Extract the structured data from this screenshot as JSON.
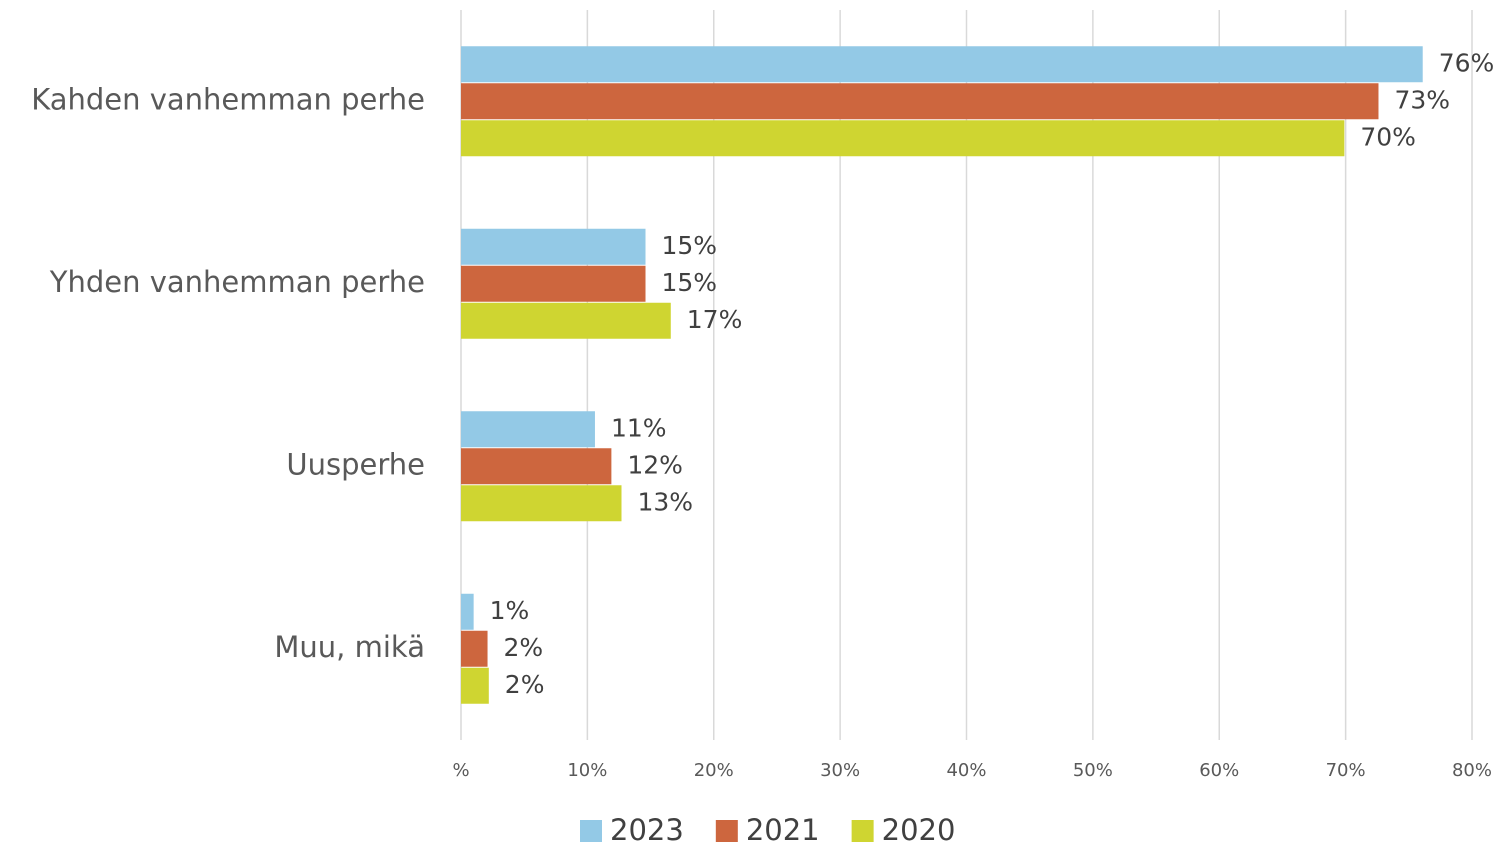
{
  "chart_data": {
    "type": "hbar",
    "categories": [
      "Kahden vanhemman perhe",
      "Yhden vanhemman perhe",
      "Uusperhe",
      "Muu, mikä"
    ],
    "series": [
      {
        "name": "2023",
        "color": "#93c9e6",
        "values": [
          76.1,
          14.6,
          10.6,
          1.0
        ],
        "value_labels": [
          "76%",
          "15%",
          "11%",
          "1%"
        ]
      },
      {
        "name": "2021",
        "color": "#cd663e",
        "values": [
          72.6,
          14.6,
          11.9,
          2.1
        ],
        "value_labels": [
          "73%",
          "15%",
          "12%",
          "2%"
        ]
      },
      {
        "name": "2020",
        "color": "#cfd531",
        "values": [
          69.9,
          16.6,
          12.7,
          2.2
        ],
        "value_labels": [
          "70%",
          "17%",
          "13%",
          "2%"
        ]
      }
    ],
    "xlim": [
      0,
      80
    ],
    "xticks": [
      {
        "value": 0,
        "label": "%"
      },
      {
        "value": 10,
        "label": "10%"
      },
      {
        "value": 20,
        "label": "20%"
      },
      {
        "value": 30,
        "label": "30%"
      },
      {
        "value": 40,
        "label": "40%"
      },
      {
        "value": 50,
        "label": "50%"
      },
      {
        "value": 60,
        "label": "60%"
      },
      {
        "value": 70,
        "label": "70%"
      },
      {
        "value": 80,
        "label": "80%"
      }
    ],
    "grid": true,
    "legend": "bottom"
  }
}
